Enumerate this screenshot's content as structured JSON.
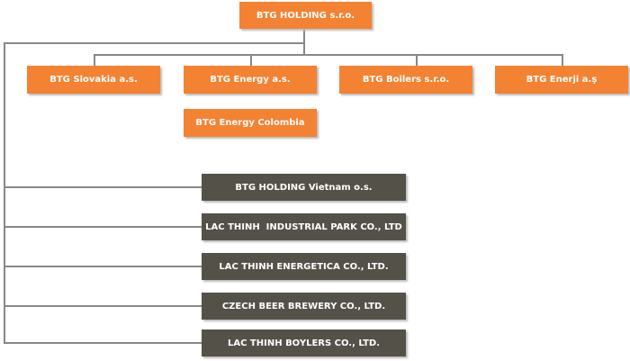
{
  "root": {
    "label": "BTG HOLDING s.r.o."
  },
  "subsidiaries": [
    {
      "label": "BTG Slovakia a.s."
    },
    {
      "label": "BTG Energy a.s."
    },
    {
      "label": "BTG Boilers s.r.o."
    },
    {
      "label": "BTG Enerji a.ş"
    }
  ],
  "sub_child": {
    "label": "BTG Energy Colombia"
  },
  "vietnam_group": [
    {
      "label": "BTG HOLDING Vietnam o.s."
    },
    {
      "label": "LAC THINH  INDUSTRIAL PARK CO., LTD"
    },
    {
      "label": "LAC THINH ENERGETICA CO., LTD."
    },
    {
      "label": "CZECH BEER BREWERY CO., LTD."
    },
    {
      "label": "LAC THINH BOYLERS CO., LTD."
    }
  ],
  "colors": {
    "orange": "#f48233",
    "dark": "#545149",
    "line": "#888888"
  }
}
